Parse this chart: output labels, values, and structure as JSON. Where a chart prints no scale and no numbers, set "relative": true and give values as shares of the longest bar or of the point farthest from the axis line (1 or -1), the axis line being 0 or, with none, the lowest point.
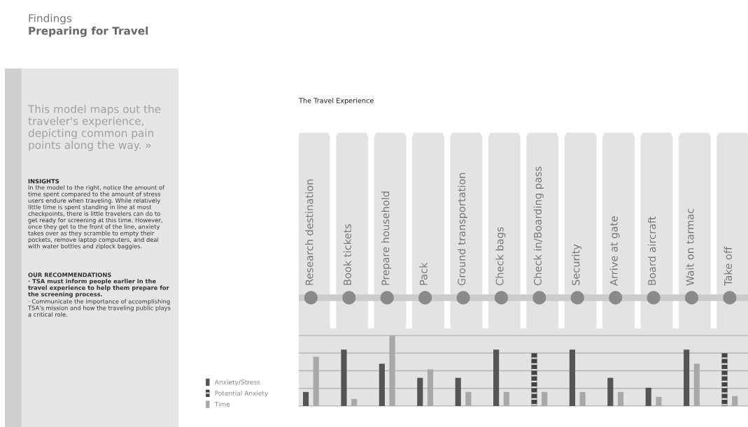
{
  "chart_data": {
    "type": "bar",
    "title": "The Travel Experience",
    "relative": true,
    "grid": "y",
    "legend": "bottom left",
    "categories": [
      "Research destination",
      "Book tickets",
      "Prepare household",
      "Pack",
      "Ground transportation",
      "Check bags",
      "Check in/Boarding pass",
      "Security",
      "Arrive at gate",
      "Board aircraft",
      "Wait on tarmac",
      "Take off"
    ],
    "series": [
      {
        "name": "Anxiety/Stress",
        "color": "#555555",
        "values": [
          0.2,
          0.8,
          0.6,
          0.4,
          0.4,
          0.8,
          null,
          0.8,
          0.4,
          0.26,
          0.8,
          null
        ]
      },
      {
        "name": "Potential Anxiety",
        "color": "#444444",
        "line_style": "dashed",
        "values": [
          null,
          null,
          null,
          null,
          null,
          null,
          0.75,
          null,
          null,
          null,
          null,
          0.75
        ]
      },
      {
        "name": "Time",
        "color": "#a8a8a8",
        "values": [
          0.7,
          0.1,
          1.0,
          0.52,
          0.2,
          0.2,
          0.2,
          0.2,
          0.2,
          0.13,
          0.6,
          0.14
        ]
      }
    ],
    "annotations": [
      "Findings",
      "Preparing for Travel",
      "This model maps out the traveler's experience, depicting common pain points along the way. »",
      "INSIGHTS",
      "In the model to the right, notice the amount of time spent compared to the amount of stress users endure when traveling. While relatively little time is spent standing in line at most checkpoints, there is little travelers can do to get ready for screening at this time. However, once they get to the front of the line, anxiety takes over as they scramble to empty their pockets, remove laptop computers, and deal with water bottles and ziplock baggies.",
      "OUR RECOMMENDATIONS",
      "· TSA must inform people earlier in the travel experience to help them prepare for the screening process.",
      "· Communicate the importance of accomplishing TSA's mission and how the traveling public plays a critical role."
    ]
  }
}
